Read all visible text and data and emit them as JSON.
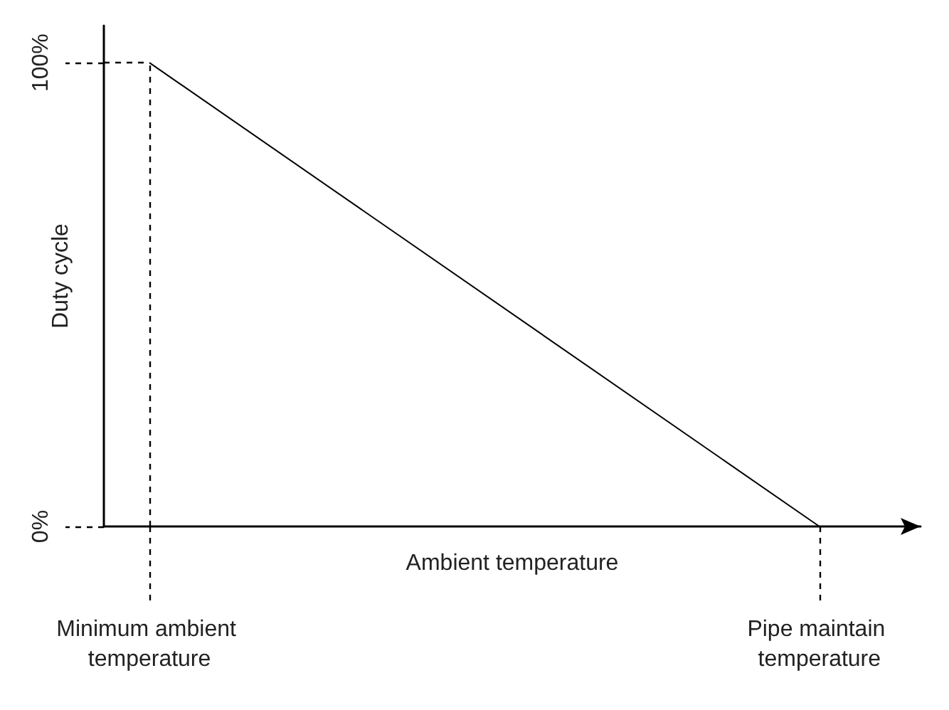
{
  "chart_data": {
    "type": "line",
    "xlabel": "Ambient temperature",
    "ylabel": "Duty cycle",
    "categories": [
      "Minimum ambient temperature",
      "Pipe maintain temperature"
    ],
    "values": [
      100,
      0
    ],
    "color": "#000000",
    "ylim": [
      0,
      108
    ],
    "yticks": [
      {
        "value": 0,
        "label": "0%"
      },
      {
        "value": 100,
        "label": "100%"
      }
    ],
    "ref_lines": [
      {
        "axis": "x",
        "value": "Minimum ambient temperature",
        "line_style": "dashed"
      }
    ],
    "grid": false
  }
}
